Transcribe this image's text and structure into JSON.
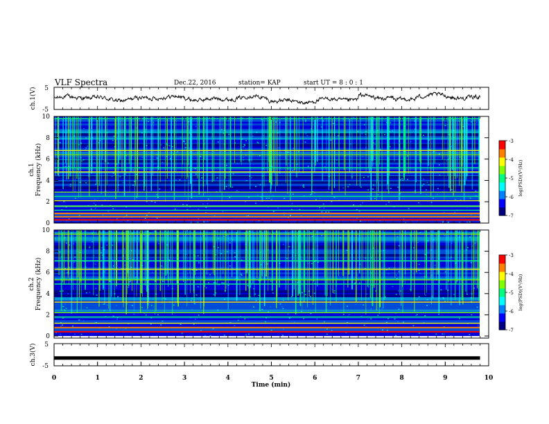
{
  "header": {
    "title": "VLF Spectra",
    "date": "Dec.22, 2016",
    "station": "station= KAP",
    "start": "start UT =  8 : 0  : 1"
  },
  "colors": {
    "colormap": [
      "#000080",
      "#0000ff",
      "#0080ff",
      "#00ffff",
      "#00ff80",
      "#80ff00",
      "#ffff00",
      "#ff8000",
      "#ff0000",
      "#ffffff"
    ],
    "trace": "#000000",
    "channel3_bar": "#000000"
  },
  "chart_data": [
    {
      "type": "line",
      "name": "ch1-waveform",
      "ylabel": "ch.1(V)",
      "ylim": [
        -5,
        5
      ],
      "yticks": [
        "5",
        "-5"
      ],
      "xlim": [
        0,
        10
      ],
      "baseline": 0.3,
      "notes_values": "noisy waveform oscillating roughly between -2 and +3 V; step shifts near 5 and 7 min"
    },
    {
      "type": "heatmap",
      "name": "ch1-spectrogram",
      "ylabel_top": "ch.1",
      "ylabel": "Frequency (kHz)",
      "ylim": [
        0,
        10
      ],
      "yticks": [
        "0",
        "2",
        "4",
        "6",
        "8",
        "10"
      ],
      "xlim": [
        0,
        9.8
      ],
      "colorbar": {
        "label": "log(PSD)(V²/Hz)",
        "range": [
          -7,
          -3
        ],
        "ticks": [
          "-3",
          "-4",
          "-5",
          "-6",
          "-7"
        ]
      },
      "bright_bands_khz": [
        0.3,
        0.6,
        0.9,
        1.2,
        1.6,
        2.1,
        2.5,
        2.9,
        4.8,
        5.2,
        6.4,
        6.8,
        9.8
      ],
      "dark_bands_khz": [
        3.3,
        3.8,
        4.3,
        5.8,
        7.3,
        8.3
      ]
    },
    {
      "type": "heatmap",
      "name": "ch2-spectrogram",
      "ylabel_top": "ch.2",
      "ylabel": "Frequency (kHz)",
      "ylim": [
        0,
        10
      ],
      "yticks": [
        "0",
        "2",
        "4",
        "6",
        "8",
        "10"
      ],
      "xlim": [
        0,
        9.8
      ],
      "colorbar": {
        "label": "log(PSD)(V²/Hz)",
        "range": [
          -7,
          -3
        ],
        "ticks": [
          "-3",
          "-4",
          "-5",
          "-6",
          "-7"
        ]
      },
      "bright_bands_khz": [
        0.4,
        0.8,
        1.2,
        1.8,
        2.2,
        3.2,
        4.9,
        5.3,
        6.3,
        7.1,
        9.6
      ],
      "dark_bands_khz": [
        3.8,
        4.2,
        7.6,
        8.4
      ]
    },
    {
      "type": "line",
      "name": "ch3-waveform",
      "ylabel": "ch.3(V)",
      "ylim": [
        -5,
        5
      ],
      "yticks": [
        "5",
        "-5"
      ],
      "xlim": [
        0,
        10
      ],
      "constant_value": -1.5
    }
  ],
  "xaxis": {
    "label": "Time (min)",
    "ticks": [
      "0",
      "1",
      "2",
      "3",
      "4",
      "5",
      "6",
      "7",
      "8",
      "9",
      "10"
    ]
  }
}
